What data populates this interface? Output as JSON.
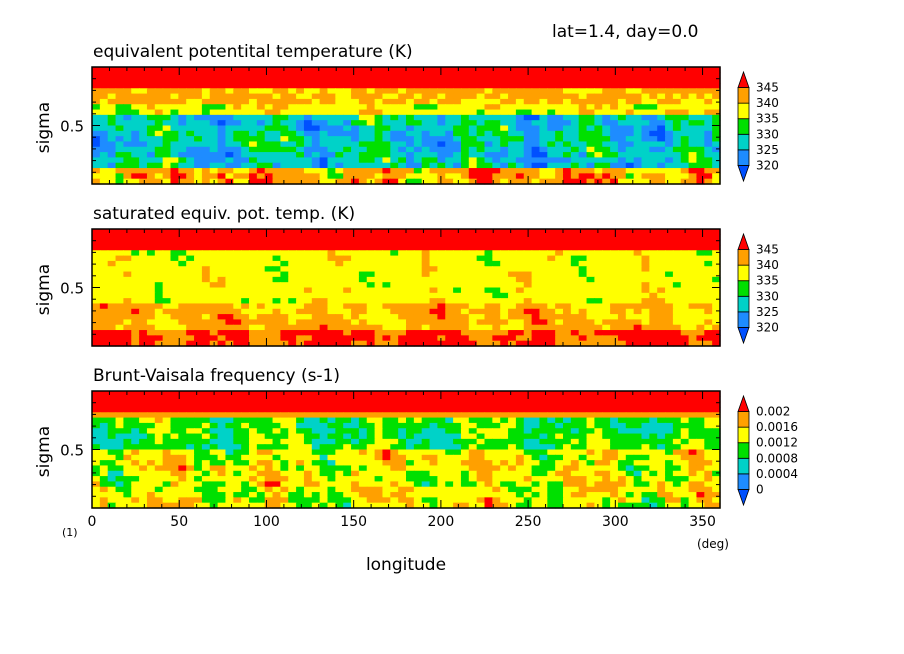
{
  "header": {
    "text": "lat=1.4, day=0.0"
  },
  "figure_marker": "(1)",
  "chart_data": [
    {
      "type": "heatmap",
      "title": "equivalent potentital temperature (K)",
      "xlabel": "",
      "ylabel": "sigma",
      "ytick_labels": [
        "0.5"
      ],
      "xlim": [
        0,
        360
      ],
      "ylim": [
        0,
        1
      ],
      "colorbar": {
        "tick_labels": [
          "320",
          "325",
          "330",
          "335",
          "340",
          "345"
        ],
        "levels": [
          320,
          325,
          330,
          335,
          340,
          345
        ],
        "colors": [
          "#0050ff",
          "#1e8cff",
          "#00d2c8",
          "#00e000",
          "#ffff00",
          "#ffa000",
          "#ff0000"
        ]
      }
    },
    {
      "type": "heatmap",
      "title": "saturated equiv. pot. temp. (K)",
      "xlabel": "",
      "ylabel": "sigma",
      "ytick_labels": [
        "0.5"
      ],
      "xlim": [
        0,
        360
      ],
      "ylim": [
        0,
        1
      ],
      "colorbar": {
        "tick_labels": [
          "320",
          "325",
          "330",
          "335",
          "340",
          "345"
        ],
        "levels": [
          320,
          325,
          330,
          335,
          340,
          345
        ],
        "colors": [
          "#0050ff",
          "#1e8cff",
          "#00d2c8",
          "#00e000",
          "#ffff00",
          "#ffa000",
          "#ff0000"
        ]
      }
    },
    {
      "type": "heatmap",
      "title": "Brunt-Vaisala frequency (s-1)",
      "xlabel": "longitude",
      "xunit": "(deg)",
      "ylabel": "sigma",
      "ytick_labels": [
        "0.5"
      ],
      "xtick_labels": [
        "0",
        "50",
        "100",
        "150",
        "200",
        "250",
        "300",
        "350"
      ],
      "xticks": [
        0,
        50,
        100,
        150,
        200,
        250,
        300,
        350
      ],
      "xlim": [
        0,
        360
      ],
      "ylim": [
        0,
        1
      ],
      "colorbar": {
        "tick_labels": [
          "0",
          "0.0004",
          "0.0008",
          "0.0012",
          "0.0016",
          "0.002"
        ],
        "levels": [
          0,
          0.0004,
          0.0008,
          0.0012,
          0.0016,
          0.002
        ],
        "colors": [
          "#0050ff",
          "#1e8cff",
          "#00d2c8",
          "#00e000",
          "#ffff00",
          "#ffa000",
          "#ff0000"
        ]
      }
    }
  ]
}
